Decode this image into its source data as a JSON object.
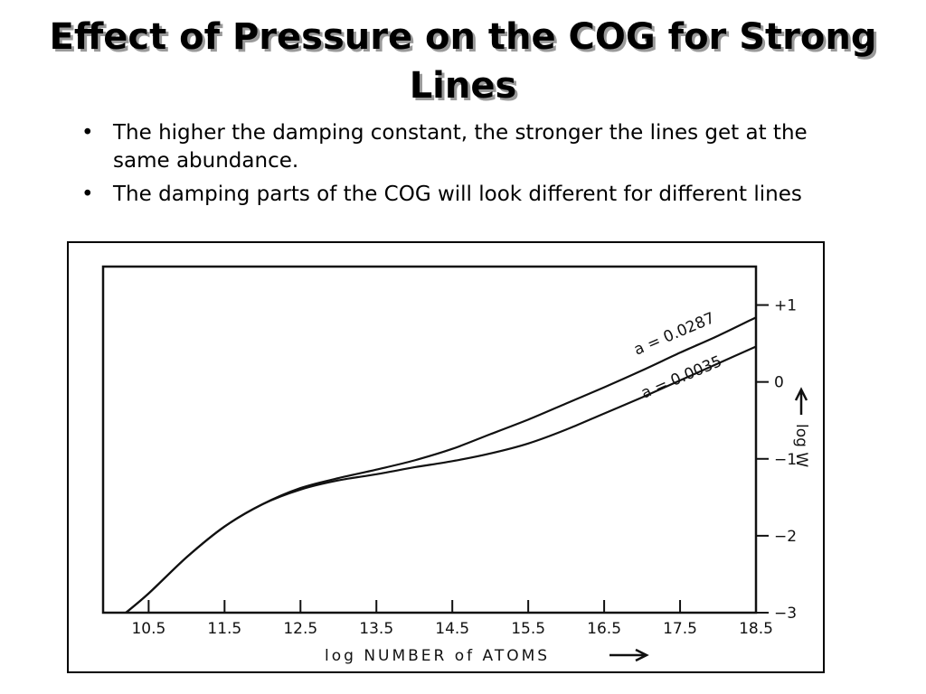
{
  "slide": {
    "title": "Effect of Pressure on the COG for Strong Lines",
    "bullet_symbol": "•",
    "bullets": [
      "The higher the damping constant, the stronger the lines get at the same abundance.",
      "The damping parts of the COG will look different for different lines"
    ]
  },
  "chart_data": {
    "type": "line",
    "xlabel": "log NUMBER of ATOMS",
    "ylabel": "log W",
    "x_ticks": [
      10.5,
      11.5,
      12.5,
      13.5,
      14.5,
      15.5,
      16.5,
      17.5,
      18.5
    ],
    "x_tick_labels": [
      "10.5",
      "11.5",
      "12.5",
      "13.5",
      "14.5",
      "15.5",
      "16.5",
      "17.5",
      "18.5"
    ],
    "y_ticks": [
      1,
      0,
      -1,
      -2,
      -3
    ],
    "y_tick_labels": [
      "+1",
      "0",
      "−1",
      "−2",
      "−3"
    ],
    "xlim": [
      9.9,
      18.5
    ],
    "ylim": [
      -3.0,
      1.5
    ],
    "y_axis_side": "right",
    "grid": false,
    "series": [
      {
        "name": "a = 0.0287",
        "x": [
          10.2,
          10.5,
          11.0,
          11.5,
          12.0,
          12.5,
          13.0,
          13.5,
          14.0,
          14.5,
          15.0,
          15.5,
          16.0,
          16.5,
          17.0,
          17.5,
          18.0,
          18.5
        ],
        "y": [
          -3.0,
          -2.75,
          -2.28,
          -1.88,
          -1.59,
          -1.38,
          -1.25,
          -1.14,
          -1.02,
          -0.87,
          -0.68,
          -0.49,
          -0.28,
          -0.07,
          0.15,
          0.38,
          0.6,
          0.84
        ]
      },
      {
        "name": "a = 0.0035",
        "x": [
          10.2,
          10.5,
          11.0,
          11.5,
          12.0,
          12.5,
          13.0,
          13.5,
          14.0,
          14.5,
          15.0,
          15.5,
          16.0,
          16.5,
          17.0,
          17.5,
          18.0,
          18.5
        ],
        "y": [
          -3.0,
          -2.75,
          -2.28,
          -1.88,
          -1.59,
          -1.4,
          -1.28,
          -1.2,
          -1.11,
          -1.03,
          -0.93,
          -0.8,
          -0.62,
          -0.41,
          -0.2,
          0.02,
          0.24,
          0.46
        ]
      }
    ],
    "annotations": [
      "a = 0.0287",
      "a = 0.0035"
    ]
  }
}
